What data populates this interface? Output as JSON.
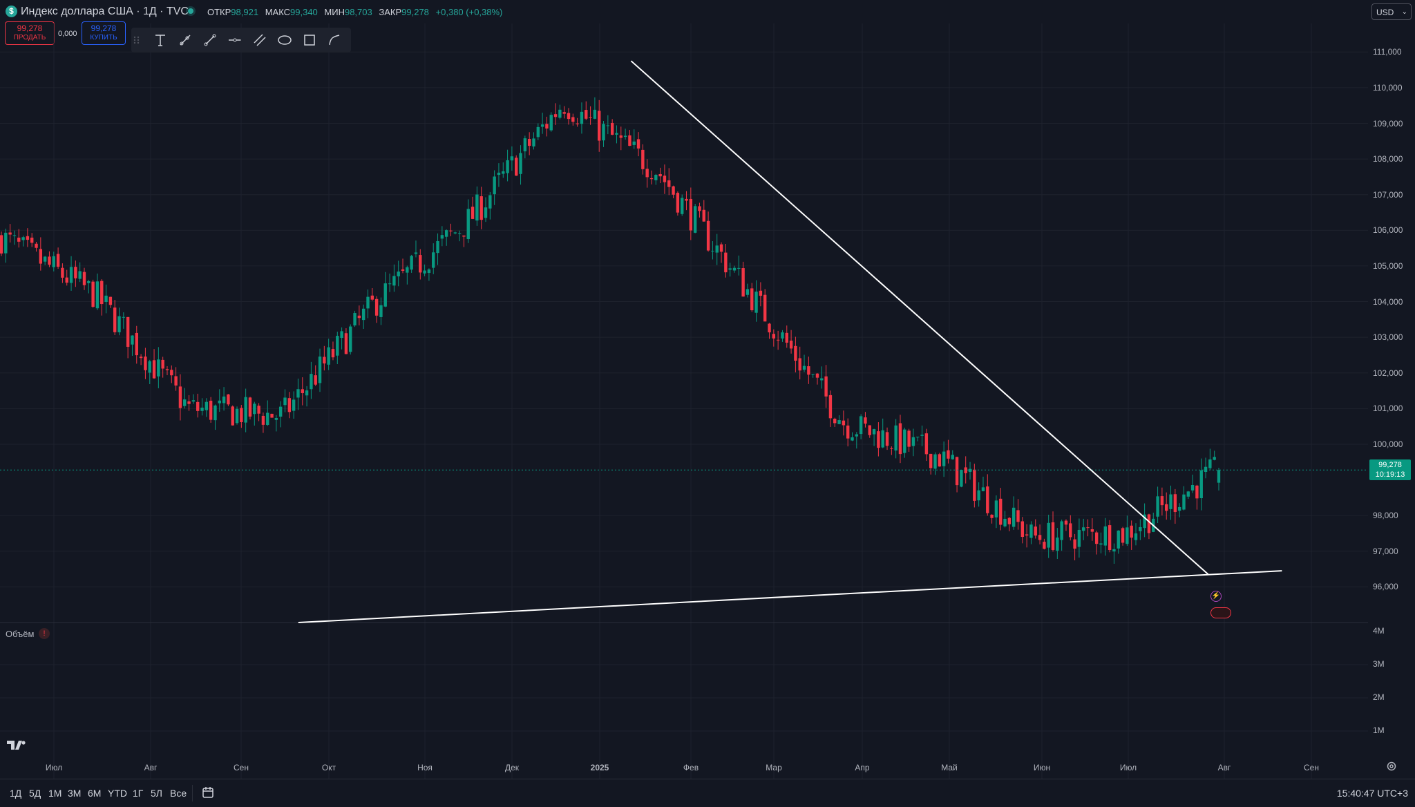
{
  "header": {
    "symbol_badge": "$",
    "title": "Индекс доллара США · 1Д · TVC",
    "open_label": "ОТКР",
    "open_value": "98,921",
    "high_label": "МАКС",
    "high_value": "99,340",
    "low_label": "МИН",
    "low_value": "98,703",
    "close_label": "ЗАКР",
    "close_value": "99,278",
    "change": "+0,380 (+0,38%)",
    "currency": "USD"
  },
  "trade": {
    "sell_price": "99,278",
    "sell_label": "ПРОДАТЬ",
    "buy_price": "99,278",
    "buy_label": "КУПИТЬ",
    "spread": "0,000"
  },
  "toolbar": {
    "tools": [
      "drag-handle-icon",
      "text-icon",
      "ray-icon",
      "trendline-icon",
      "horizontal-ray-icon",
      "parallel-channel-icon",
      "ellipse-icon",
      "rectangle-icon",
      "path-icon"
    ]
  },
  "volume": {
    "title": "Объём",
    "axis": [
      "4M",
      "3M",
      "2M",
      "1M"
    ]
  },
  "price_tag": {
    "price": "99,278",
    "countdown": "10:19:13"
  },
  "bottom": {
    "timeframes": [
      "1Д",
      "5Д",
      "1M",
      "3M",
      "6M",
      "YTD",
      "1Г",
      "5Л",
      "Все"
    ],
    "clock": "15:40:47 UTC+3"
  },
  "colors": {
    "up": "#089981",
    "down": "#f23645",
    "background": "#131722",
    "grid": "#1e222d",
    "lines": "#ffffff"
  },
  "chart_data": {
    "type": "candlestick",
    "interval": "1D",
    "y_ticks": [
      "111,000",
      "110,000",
      "109,000",
      "108,000",
      "107,000",
      "106,000",
      "105,000",
      "104,000",
      "103,000",
      "102,000",
      "101,000",
      "100,000",
      "98,000",
      "97,000",
      "96,000"
    ],
    "ylim": [
      95.0,
      111.8
    ],
    "x_ticks": [
      "Июл",
      "Авг",
      "Сен",
      "Окт",
      "Ноя",
      "Дек",
      "2025",
      "Фев",
      "Мар",
      "Апр",
      "Май",
      "Июн",
      "Июл",
      "Авг",
      "Сен"
    ],
    "monthly_path": [
      {
        "month": "Июл",
        "close": 105.8
      },
      {
        "month": "Авг",
        "close": 104.2
      },
      {
        "month": "Сен",
        "close": 101.0
      },
      {
        "month": "Окт",
        "close": 100.8
      },
      {
        "month": "Ноя",
        "close": 104.0
      },
      {
        "month": "Дек",
        "close": 106.3
      },
      {
        "month": "2025",
        "close": 109.6
      },
      {
        "month": "Фев",
        "close": 107.7
      },
      {
        "month": "Мар",
        "close": 104.2
      },
      {
        "month": "Апр",
        "close": 100.6
      },
      {
        "month": "Май",
        "close": 99.7
      },
      {
        "month": "Июн",
        "close": 97.4
      },
      {
        "month": "Июл",
        "close": 97.5
      },
      {
        "month": "Авг",
        "close": 99.3
      }
    ],
    "last": {
      "open": 98.921,
      "high": 99.34,
      "low": 98.703,
      "close": 99.278
    },
    "drawings": [
      {
        "type": "trendline",
        "from": {
          "date": "2025-01-13",
          "price": 110.75
        },
        "to": {
          "date": "2025-07-28",
          "price": 96.35
        }
      },
      {
        "type": "trendline",
        "from": {
          "date": "2024-09-22",
          "price": 95.0
        },
        "to": {
          "date": "2025-08-22",
          "price": 96.45
        }
      }
    ]
  }
}
